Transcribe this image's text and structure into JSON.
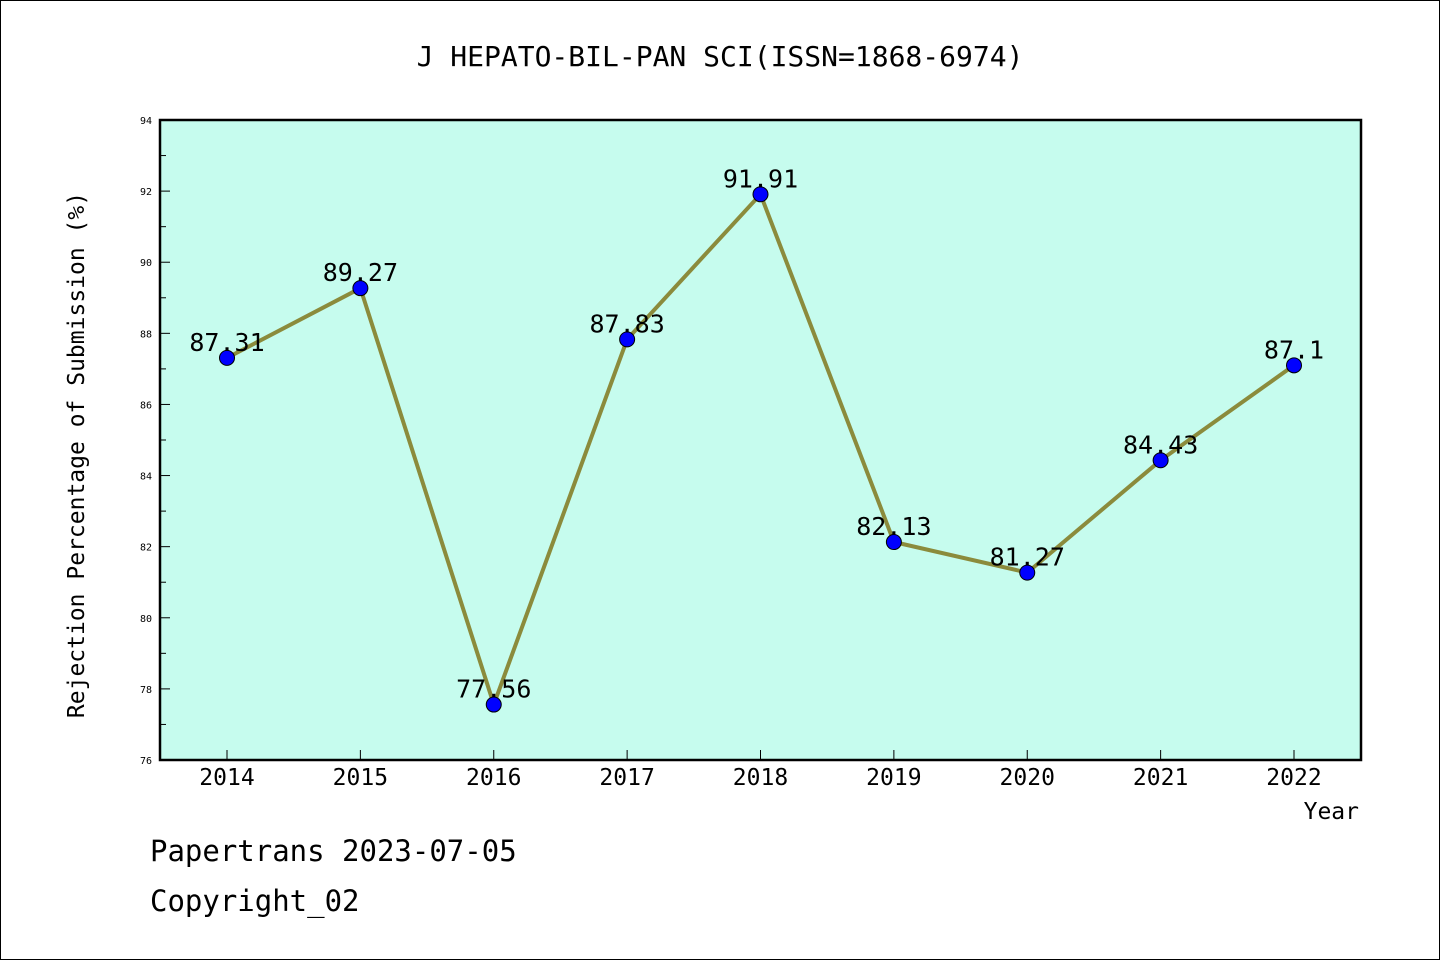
{
  "chart_data": {
    "type": "line",
    "title": "J HEPATO-BIL-PAN SCI(ISSN=1868-6974)",
    "xlabel": "Year",
    "ylabel": "Rejection Percentage of Submission (%)",
    "categories": [
      "2014",
      "2015",
      "2016",
      "2017",
      "2018",
      "2019",
      "2020",
      "2021",
      "2022"
    ],
    "values": [
      87.31,
      89.27,
      77.56,
      87.83,
      91.91,
      82.13,
      81.27,
      84.43,
      87.1
    ],
    "data_labels": [
      "87.31",
      "89.27",
      "77.56",
      "87.83",
      "91.91",
      "82.13",
      "81.27",
      "84.43",
      "87.1"
    ],
    "ylim": [
      76,
      94
    ],
    "yticks": [
      76,
      78,
      80,
      82,
      84,
      86,
      88,
      90,
      92,
      94
    ],
    "grid": false,
    "colors": {
      "plot_background": "#c6fcee",
      "line": "#8b8b3c",
      "marker": "#0000ff"
    }
  },
  "footer": {
    "line1": "Papertrans 2023-07-05",
    "line2": "Copyright_02"
  }
}
